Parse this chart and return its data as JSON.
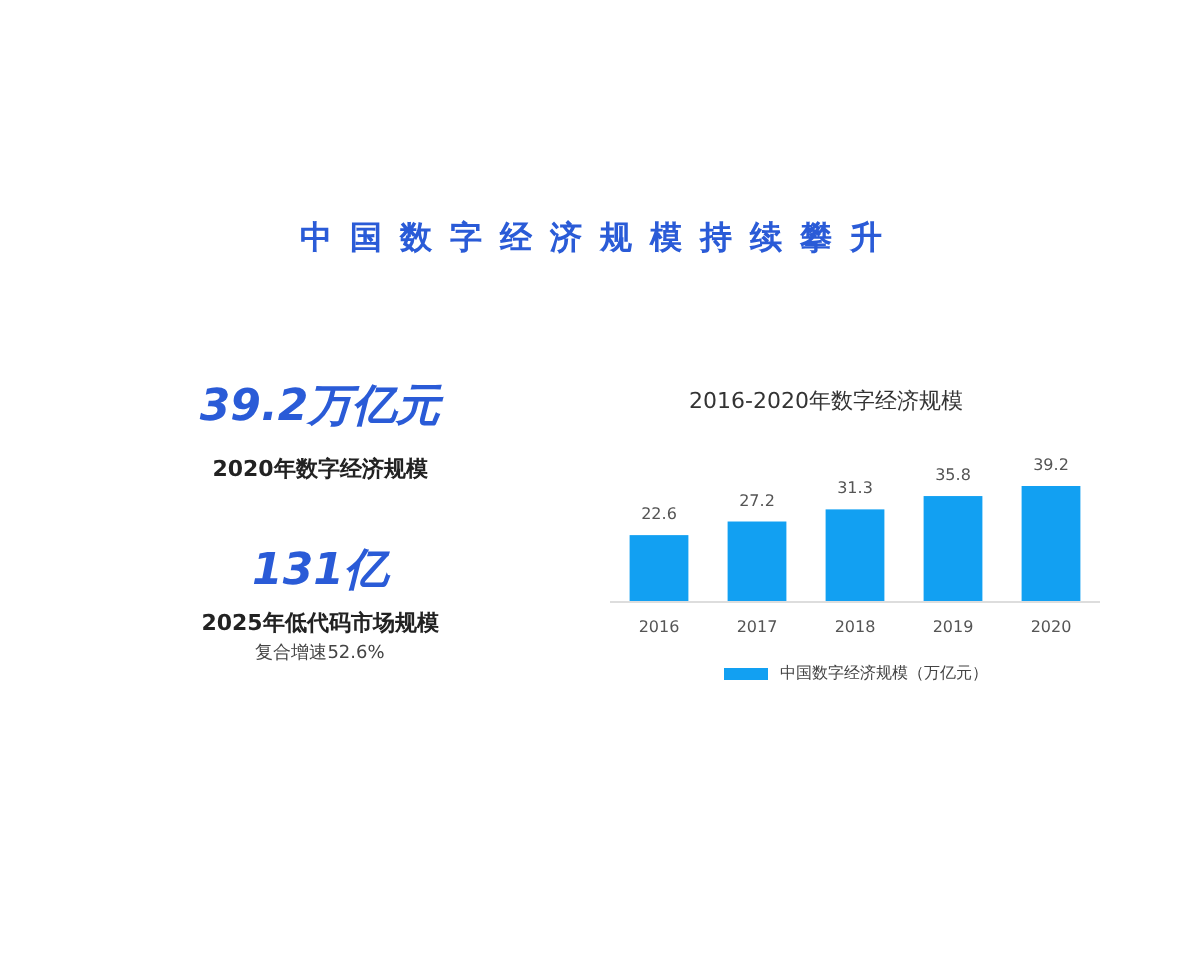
{
  "chart_data": [
    {
      "type": "other",
      "title": "中国数字经济规模持续攀升",
      "color": "#2a5bd7",
      "annotations": [
        "39.2万亿元",
        "2020年数字经济规模",
        "131亿",
        "2025年低代码市场规模",
        "复合增速52.6%"
      ]
    },
    {
      "type": "bar",
      "title": "2016-2020年数字经济规模",
      "categories": [
        "2016",
        "2017",
        "2018",
        "2019",
        "2020"
      ],
      "series": [
        {
          "name": "中国数字经济规模（万亿元）",
          "color": "#12a0f2",
          "values": [
            22.6,
            27.2,
            31.3,
            35.8,
            39.2
          ]
        }
      ],
      "data_labels": true,
      "legend": "bottom"
    }
  ]
}
